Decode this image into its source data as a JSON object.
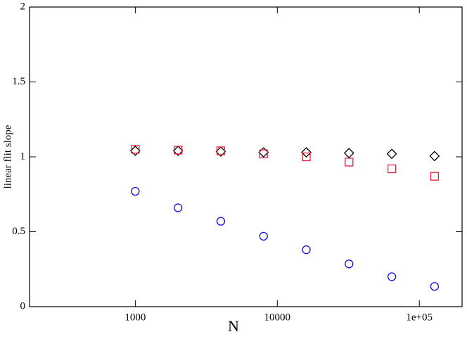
{
  "chart_data": {
    "type": "scatter",
    "xlabel": "N",
    "ylabel": "linear flit slope",
    "xscale": "log",
    "xlim": [
      180,
      200000
    ],
    "ylim": [
      0,
      2
    ],
    "xticks": [
      1000,
      10000,
      {
        "value": 100000,
        "label": "1e+05"
      }
    ],
    "yticks": [
      0,
      0.5,
      1,
      1.5,
      2
    ],
    "x": [
      1000,
      2000,
      4000,
      8000,
      16000,
      32000,
      64000,
      128000
    ],
    "series": [
      {
        "color": "#000000",
        "marker": "diamond",
        "values": [
          1.04,
          1.04,
          1.035,
          1.03,
          1.03,
          1.025,
          1.02,
          1.005
        ]
      },
      {
        "color": "#e8203a",
        "marker": "square",
        "values": [
          1.05,
          1.045,
          1.04,
          1.02,
          1.0,
          0.965,
          0.92,
          0.87
        ]
      },
      {
        "color": "#1010d0",
        "marker": "circle",
        "values": [
          0.77,
          0.66,
          0.57,
          0.47,
          0.38,
          0.285,
          0.2,
          0.135
        ]
      }
    ]
  }
}
